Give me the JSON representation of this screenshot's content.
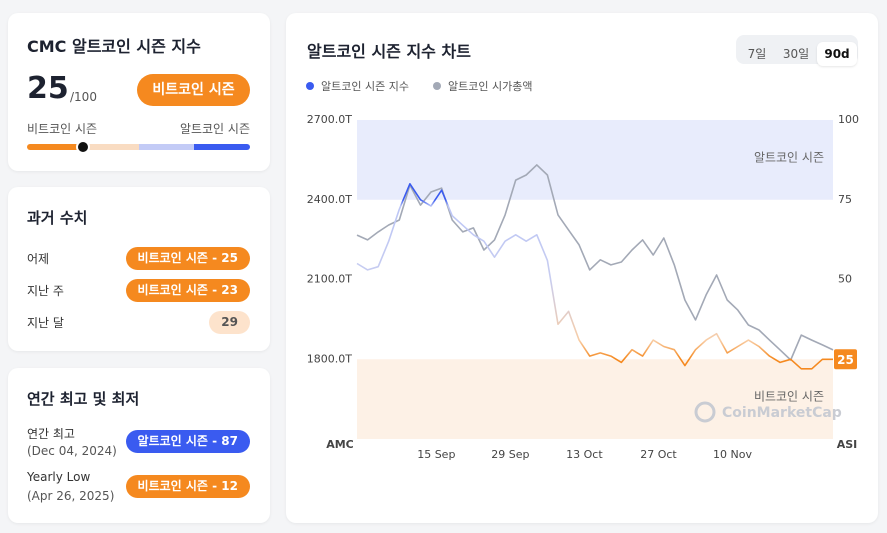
{
  "index_card": {
    "title": "CMC 알트코인 시즌 지수",
    "value": 25,
    "max_label": "/100",
    "status": "비트코인 시즌",
    "scale_left": "비트코인 시즌",
    "scale_right": "알트코인 시즌"
  },
  "history": {
    "title": "과거 수치",
    "rows": [
      {
        "label": "어제",
        "badge": "비트코인 시즌 - 25",
        "style": "bitcoin"
      },
      {
        "label": "지난 주",
        "badge": "비트코인 시즌 - 23",
        "style": "bitcoin"
      },
      {
        "label": "지난 달",
        "badge": "29",
        "style": "neutral"
      }
    ]
  },
  "yearly": {
    "title": "연간 최고 및 최저",
    "rows": [
      {
        "label": "연간 최고",
        "date": "(Dec 04, 2024)",
        "badge": "알트코인 시즌 - 87",
        "style": "altcoin"
      },
      {
        "label": "Yearly Low",
        "date": "(Apr 26, 2025)",
        "badge": "비트코인 시즌 - 12",
        "style": "bitcoin"
      }
    ]
  },
  "chart_header": {
    "title": "알트코인 시즌 지수 차트",
    "ranges": [
      "7일",
      "30일",
      "90d"
    ],
    "active_range": 2
  },
  "chart_data": {
    "type": "line",
    "x": [
      0,
      2,
      4,
      6,
      8,
      10,
      12,
      14,
      16,
      18,
      20,
      22,
      24,
      26,
      28,
      30,
      32,
      34,
      36,
      38,
      40,
      42,
      44,
      46,
      48,
      50,
      52,
      54,
      56,
      58,
      60,
      62,
      64,
      66,
      68,
      70,
      72,
      74,
      76,
      78,
      80,
      82,
      84,
      86,
      88,
      90
    ],
    "xlim": [
      0,
      90
    ],
    "xticks": [
      {
        "value": 15,
        "label": "15 Sep"
      },
      {
        "value": 29,
        "label": "29 Sep"
      },
      {
        "value": 43,
        "label": "13 Oct"
      },
      {
        "value": 57,
        "label": "27 Oct"
      },
      {
        "value": 71,
        "label": "10 Nov"
      }
    ],
    "x_end_labels": [
      "AMC",
      "ASI"
    ],
    "ylim": [
      1500,
      2700
    ],
    "yticks": [
      {
        "value": 1800,
        "label": "1800.0T"
      },
      {
        "value": 2100,
        "label": "2100.0T"
      },
      {
        "value": 2400,
        "label": "2400.0T"
      },
      {
        "value": 2700,
        "label": "2700.0T"
      }
    ],
    "y2lim": [
      0,
      100
    ],
    "y2ticks": [
      25,
      50,
      75,
      100
    ],
    "zones": [
      {
        "label": "알트코인 시즌",
        "from": 75,
        "to": 100,
        "color": "#e8ecfc",
        "line_color": "#3a5bf0"
      },
      {
        "label": "비트코인 시즌",
        "from": 0,
        "to": 25,
        "color": "#fdf1e6",
        "line_color": "#f5891f"
      }
    ],
    "watermark": "CoinMarketCap",
    "series": [
      {
        "name": "알트코인 시즌 지수",
        "color": "#3a5bf0",
        "axis": "y2",
        "values": [
          55,
          53,
          54,
          62,
          72,
          80,
          75,
          73,
          78,
          70,
          67,
          64,
          62,
          57,
          62,
          64,
          62,
          64,
          56,
          36,
          40,
          31,
          26,
          27,
          26,
          24,
          28,
          26,
          31,
          29,
          28,
          23,
          28,
          31,
          33,
          27,
          29,
          31,
          29,
          26,
          24,
          25,
          22,
          22,
          25,
          25
        ]
      },
      {
        "name": "알트코인 시가총액",
        "color": "#a3a9b6",
        "values": [
          2267,
          2249,
          2279,
          2305,
          2324,
          2455,
          2380,
          2429,
          2444,
          2324,
          2279,
          2294,
          2211,
          2249,
          2343,
          2474,
          2493,
          2531,
          2493,
          2343,
          2286,
          2230,
          2136,
          2174,
          2155,
          2166,
          2211,
          2249,
          2192,
          2256,
          2155,
          2023,
          1948,
          2042,
          2117,
          2023,
          1985,
          1929,
          1910,
          1872,
          1835,
          1797,
          1891,
          1872,
          1854,
          1835
        ]
      }
    ]
  }
}
